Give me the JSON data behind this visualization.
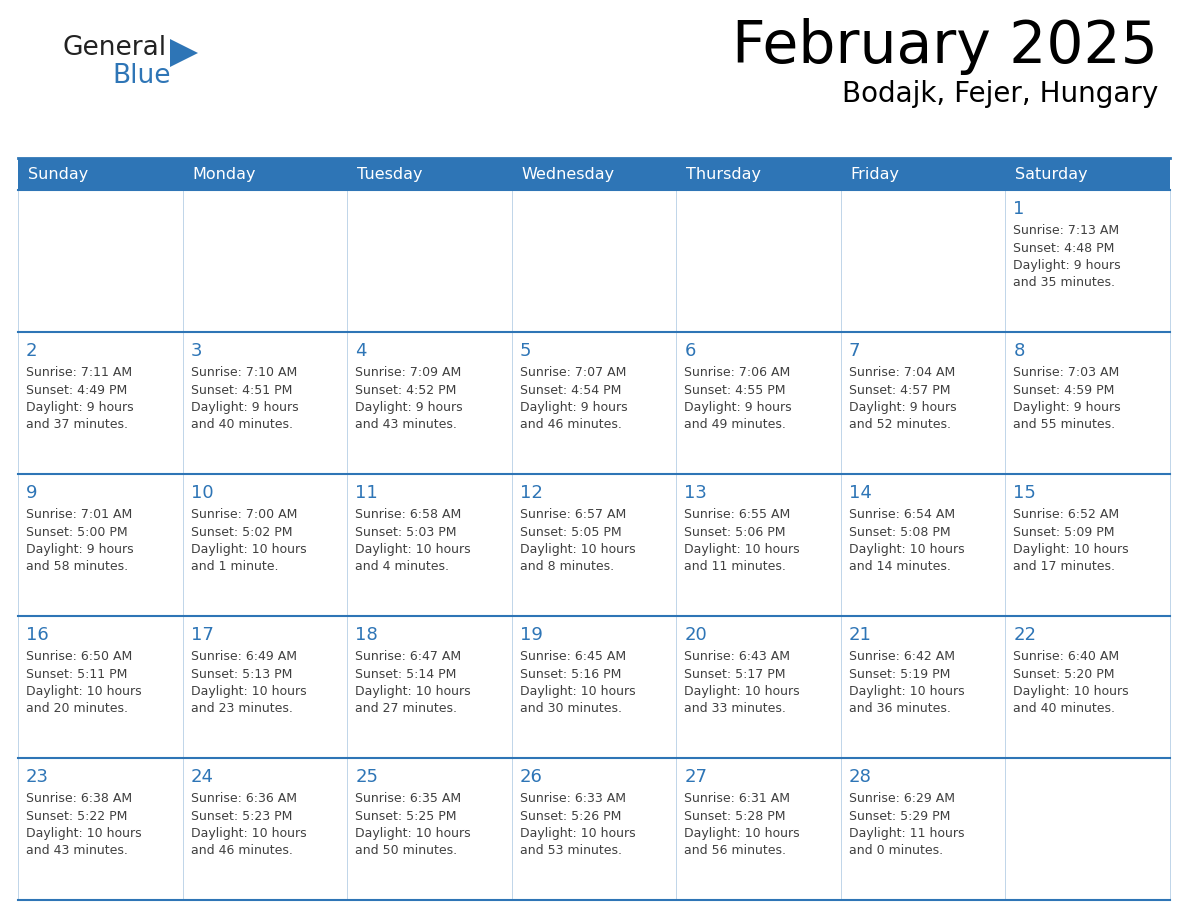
{
  "title": "February 2025",
  "subtitle": "Bodajk, Fejer, Hungary",
  "days_of_week": [
    "Sunday",
    "Monday",
    "Tuesday",
    "Wednesday",
    "Thursday",
    "Friday",
    "Saturday"
  ],
  "header_bg": "#2e75b6",
  "header_text": "#ffffff",
  "day_num_color": "#2e75b6",
  "text_color": "#404040",
  "line_color": "#2e75b6",
  "logo_general_color": "#222222",
  "logo_blue_color": "#2e75b6",
  "logo_triangle_color": "#2e75b6",
  "calendar_data": [
    [
      null,
      null,
      null,
      null,
      null,
      null,
      {
        "day": 1,
        "sunrise": "7:13 AM",
        "sunset": "4:48 PM",
        "daylight": "9 hours",
        "daylight2": "and 35 minutes."
      }
    ],
    [
      {
        "day": 2,
        "sunrise": "7:11 AM",
        "sunset": "4:49 PM",
        "daylight": "9 hours",
        "daylight2": "and 37 minutes."
      },
      {
        "day": 3,
        "sunrise": "7:10 AM",
        "sunset": "4:51 PM",
        "daylight": "9 hours",
        "daylight2": "and 40 minutes."
      },
      {
        "day": 4,
        "sunrise": "7:09 AM",
        "sunset": "4:52 PM",
        "daylight": "9 hours",
        "daylight2": "and 43 minutes."
      },
      {
        "day": 5,
        "sunrise": "7:07 AM",
        "sunset": "4:54 PM",
        "daylight": "9 hours",
        "daylight2": "and 46 minutes."
      },
      {
        "day": 6,
        "sunrise": "7:06 AM",
        "sunset": "4:55 PM",
        "daylight": "9 hours",
        "daylight2": "and 49 minutes."
      },
      {
        "day": 7,
        "sunrise": "7:04 AM",
        "sunset": "4:57 PM",
        "daylight": "9 hours",
        "daylight2": "and 52 minutes."
      },
      {
        "day": 8,
        "sunrise": "7:03 AM",
        "sunset": "4:59 PM",
        "daylight": "9 hours",
        "daylight2": "and 55 minutes."
      }
    ],
    [
      {
        "day": 9,
        "sunrise": "7:01 AM",
        "sunset": "5:00 PM",
        "daylight": "9 hours",
        "daylight2": "and 58 minutes."
      },
      {
        "day": 10,
        "sunrise": "7:00 AM",
        "sunset": "5:02 PM",
        "daylight": "10 hours",
        "daylight2": "and 1 minute."
      },
      {
        "day": 11,
        "sunrise": "6:58 AM",
        "sunset": "5:03 PM",
        "daylight": "10 hours",
        "daylight2": "and 4 minutes."
      },
      {
        "day": 12,
        "sunrise": "6:57 AM",
        "sunset": "5:05 PM",
        "daylight": "10 hours",
        "daylight2": "and 8 minutes."
      },
      {
        "day": 13,
        "sunrise": "6:55 AM",
        "sunset": "5:06 PM",
        "daylight": "10 hours",
        "daylight2": "and 11 minutes."
      },
      {
        "day": 14,
        "sunrise": "6:54 AM",
        "sunset": "5:08 PM",
        "daylight": "10 hours",
        "daylight2": "and 14 minutes."
      },
      {
        "day": 15,
        "sunrise": "6:52 AM",
        "sunset": "5:09 PM",
        "daylight": "10 hours",
        "daylight2": "and 17 minutes."
      }
    ],
    [
      {
        "day": 16,
        "sunrise": "6:50 AM",
        "sunset": "5:11 PM",
        "daylight": "10 hours",
        "daylight2": "and 20 minutes."
      },
      {
        "day": 17,
        "sunrise": "6:49 AM",
        "sunset": "5:13 PM",
        "daylight": "10 hours",
        "daylight2": "and 23 minutes."
      },
      {
        "day": 18,
        "sunrise": "6:47 AM",
        "sunset": "5:14 PM",
        "daylight": "10 hours",
        "daylight2": "and 27 minutes."
      },
      {
        "day": 19,
        "sunrise": "6:45 AM",
        "sunset": "5:16 PM",
        "daylight": "10 hours",
        "daylight2": "and 30 minutes."
      },
      {
        "day": 20,
        "sunrise": "6:43 AM",
        "sunset": "5:17 PM",
        "daylight": "10 hours",
        "daylight2": "and 33 minutes."
      },
      {
        "day": 21,
        "sunrise": "6:42 AM",
        "sunset": "5:19 PM",
        "daylight": "10 hours",
        "daylight2": "and 36 minutes."
      },
      {
        "day": 22,
        "sunrise": "6:40 AM",
        "sunset": "5:20 PM",
        "daylight": "10 hours",
        "daylight2": "and 40 minutes."
      }
    ],
    [
      {
        "day": 23,
        "sunrise": "6:38 AM",
        "sunset": "5:22 PM",
        "daylight": "10 hours",
        "daylight2": "and 43 minutes."
      },
      {
        "day": 24,
        "sunrise": "6:36 AM",
        "sunset": "5:23 PM",
        "daylight": "10 hours",
        "daylight2": "and 46 minutes."
      },
      {
        "day": 25,
        "sunrise": "6:35 AM",
        "sunset": "5:25 PM",
        "daylight": "10 hours",
        "daylight2": "and 50 minutes."
      },
      {
        "day": 26,
        "sunrise": "6:33 AM",
        "sunset": "5:26 PM",
        "daylight": "10 hours",
        "daylight2": "and 53 minutes."
      },
      {
        "day": 27,
        "sunrise": "6:31 AM",
        "sunset": "5:28 PM",
        "daylight": "10 hours",
        "daylight2": "and 56 minutes."
      },
      {
        "day": 28,
        "sunrise": "6:29 AM",
        "sunset": "5:29 PM",
        "daylight": "11 hours",
        "daylight2": "and 0 minutes."
      },
      null
    ]
  ]
}
